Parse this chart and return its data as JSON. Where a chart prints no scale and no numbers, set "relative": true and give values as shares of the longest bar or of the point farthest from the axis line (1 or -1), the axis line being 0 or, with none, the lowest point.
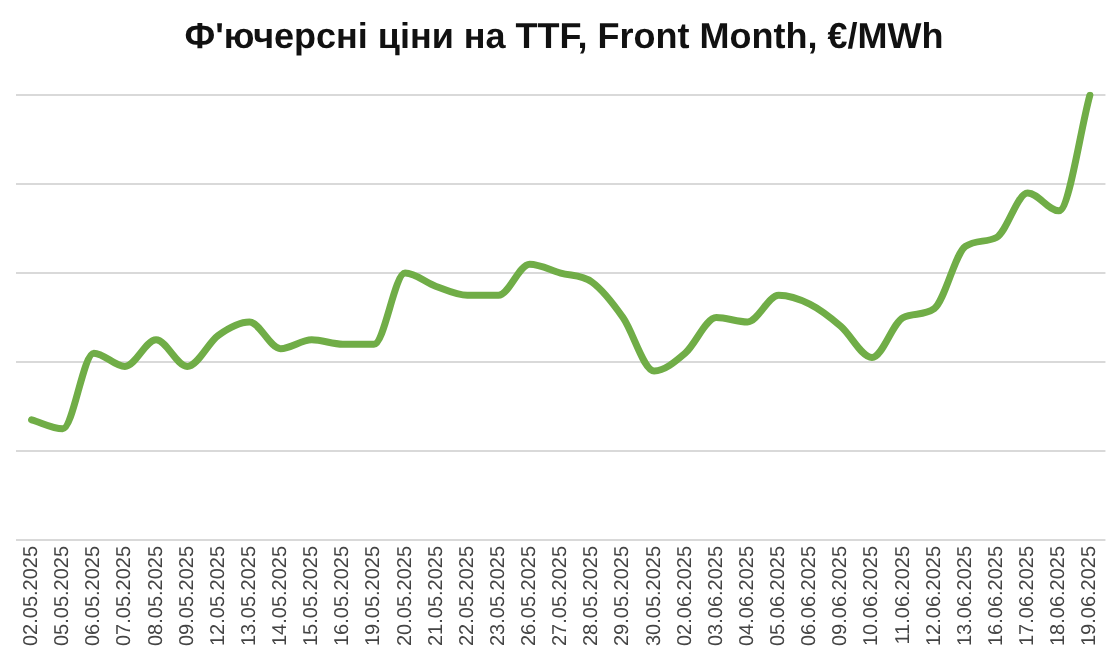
{
  "chart_data": {
    "type": "line",
    "title": "Ф'ючерсні ціни на TTF, Front Month, €/MWh",
    "relative": true,
    "grid": "y",
    "legend": false,
    "marker": "none",
    "line_style": "solid",
    "categories": [
      "02.05.2025",
      "05.05.2025",
      "06.05.2025",
      "07.05.2025",
      "08.05.2025",
      "09.05.2025",
      "12.05.2025",
      "13.05.2025",
      "14.05.2025",
      "15.05.2025",
      "16.05.2025",
      "19.05.2025",
      "20.05.2025",
      "21.05.2025",
      "22.05.2025",
      "23.05.2025",
      "26.05.2025",
      "27.05.2025",
      "28.05.2025",
      "29.05.2025",
      "30.05.2025",
      "02.06.2025",
      "03.06.2025",
      "04.06.2025",
      "05.06.2025",
      "06.06.2025",
      "09.06.2025",
      "10.06.2025",
      "11.06.2025",
      "12.06.2025",
      "13.06.2025",
      "16.06.2025",
      "17.06.2025",
      "18.06.2025",
      "19.06.2025"
    ],
    "series": [
      {
        "color": "#70ad47",
        "values": [
          0.27,
          0.25,
          0.42,
          0.39,
          0.45,
          0.39,
          0.46,
          0.49,
          0.43,
          0.45,
          0.44,
          0.44,
          0.6,
          0.57,
          0.55,
          0.55,
          0.62,
          0.6,
          0.58,
          0.5,
          0.38,
          0.42,
          0.5,
          0.49,
          0.55,
          0.53,
          0.48,
          0.41,
          0.5,
          0.52,
          0.66,
          0.68,
          0.78,
          0.74,
          1
        ]
      }
    ]
  }
}
